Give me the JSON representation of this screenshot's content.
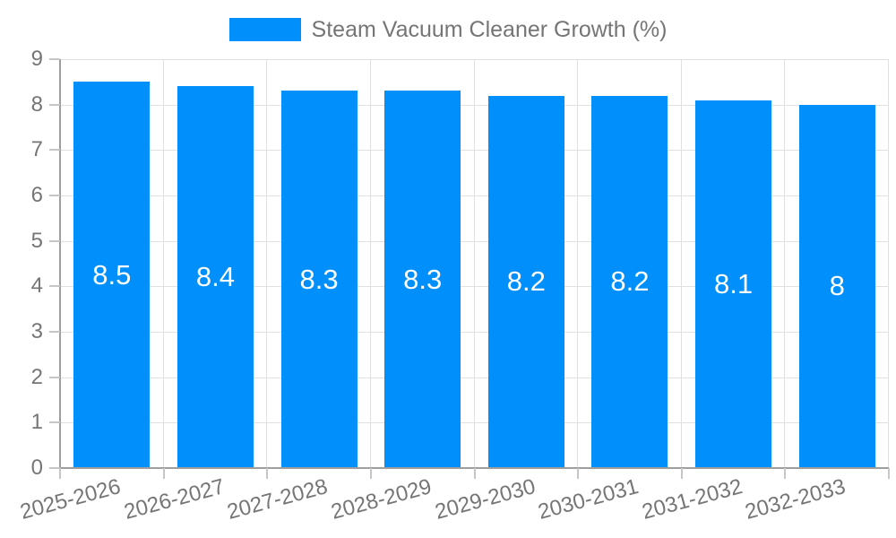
{
  "chart_data": {
    "type": "bar",
    "legend_label": "Steam Vacuum Cleaner Growth (%)",
    "legend_position": "top",
    "title": "",
    "xlabel": "",
    "ylabel": "",
    "categories": [
      "2025-2026",
      "2026-2027",
      "2027-2028",
      "2028-2029",
      "2029-2030",
      "2030-2031",
      "2031-2032",
      "2032-2033"
    ],
    "values": [
      8.5,
      8.4,
      8.3,
      8.3,
      8.2,
      8.2,
      8.1,
      8
    ],
    "value_labels": [
      "8.5",
      "8.4",
      "8.3",
      "8.3",
      "8.2",
      "8.2",
      "8.1",
      "8"
    ],
    "ylim": [
      0,
      9
    ],
    "ytick_step": 1,
    "yticks": [
      0,
      1,
      2,
      3,
      4,
      5,
      6,
      7,
      8,
      9
    ],
    "grid": true,
    "x_label_rotation_deg": -15,
    "colors": {
      "bar": "#008FFB",
      "bar_value_label": "#FFFFFF",
      "axis_text": "#757575",
      "legend_text": "#757575",
      "gridline": "#E0E0E0",
      "axis_line": "#9E9E9E",
      "tick": "#C6C6C6",
      "background": "#FFFFFF"
    }
  }
}
